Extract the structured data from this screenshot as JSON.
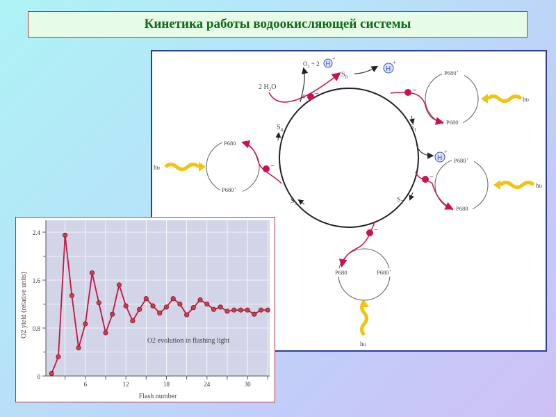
{
  "title": "Кинетика работы водоокисляющей системы",
  "diagram": {
    "states": [
      "S0",
      "S1",
      "S2",
      "S3",
      "S4"
    ],
    "water_label": "2 H2O",
    "products_label": "O2 + 2H+",
    "proton_label": "H+",
    "electron_label": "e−",
    "four_electrons_label": "4e−",
    "p680_label": "P680",
    "p680_plus_label": "P680+",
    "light_label": "hυ",
    "colors": {
      "electron": "#d0104a",
      "light": "#f2c40a",
      "proton": "#3a4fb0",
      "cycle": "#222222"
    }
  },
  "chart_data": {
    "type": "line",
    "title": "O2 evolution in flashing light",
    "xlabel": "Flash number",
    "ylabel": "O2 yield (relative units)",
    "xticks": [
      6,
      12,
      18,
      24,
      30
    ],
    "yticks": [
      0,
      0.8,
      1.6,
      2.4
    ],
    "ylim": [
      0,
      2.5
    ],
    "xlim": [
      0,
      34
    ],
    "grid": true,
    "x": [
      1,
      2,
      3,
      4,
      5,
      6,
      7,
      8,
      9,
      10,
      11,
      12,
      13,
      14,
      15,
      16,
      17,
      18,
      19,
      20,
      21,
      22,
      23,
      24,
      25,
      26,
      27,
      28,
      29,
      30,
      31,
      32,
      33
    ],
    "values": [
      0.04,
      0.32,
      2.35,
      1.34,
      0.47,
      0.87,
      1.72,
      1.22,
      0.72,
      1.03,
      1.52,
      1.17,
      0.92,
      1.11,
      1.29,
      1.17,
      1.05,
      1.15,
      1.29,
      1.2,
      1.02,
      1.14,
      1.27,
      1.2,
      1.11,
      1.15,
      1.08,
      1.1,
      1.1,
      1.1,
      1.03,
      1.1,
      1.1
    ],
    "line_color": "#c8123f",
    "marker_color": "#d03c4a",
    "plot_background": "#d2d4e8"
  }
}
